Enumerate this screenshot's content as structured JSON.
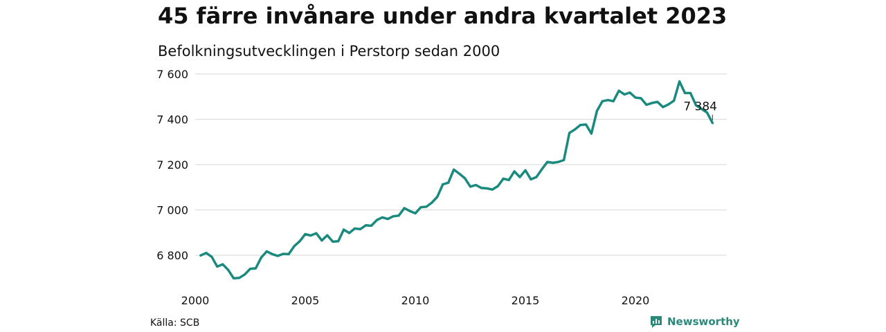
{
  "chart_data": {
    "type": "line",
    "title": "45 färre invånare under andra kvartalet 2023",
    "subtitle": "Befolkningsutvecklingen i Perstorp sedan 2000",
    "xlabel": "",
    "ylabel": "",
    "xlim": [
      2000,
      2023.4
    ],
    "ylim": [
      6690,
      7630
    ],
    "x_ticks": [
      2000,
      2005,
      2010,
      2015,
      2020
    ],
    "x_tick_labels": [
      "2000",
      "2005",
      "2010",
      "2015",
      "2020"
    ],
    "y_ticks": [
      6800,
      7000,
      7200,
      7400,
      7600
    ],
    "y_tick_labels": [
      "6 800",
      "7 000",
      "7 200",
      "7 400",
      "7 600"
    ],
    "grid": true,
    "legend": "none",
    "series": [
      {
        "color": "#1a8a7e",
        "x": [
          2000.25,
          2000.5,
          2000.75,
          2001.0,
          2001.25,
          2001.5,
          2001.75,
          2002.0,
          2002.25,
          2002.5,
          2002.75,
          2003.0,
          2003.25,
          2003.5,
          2003.75,
          2004.0,
          2004.25,
          2004.5,
          2004.75,
          2005.0,
          2005.25,
          2005.5,
          2005.75,
          2006.0,
          2006.25,
          2006.5,
          2006.75,
          2007.0,
          2007.25,
          2007.5,
          2007.75,
          2008.0,
          2008.25,
          2008.5,
          2008.75,
          2009.0,
          2009.25,
          2009.5,
          2009.75,
          2010.0,
          2010.25,
          2010.5,
          2010.75,
          2011.0,
          2011.25,
          2011.5,
          2011.75,
          2012.0,
          2012.25,
          2012.5,
          2012.75,
          2013.0,
          2013.25,
          2013.5,
          2013.75,
          2014.0,
          2014.25,
          2014.5,
          2014.75,
          2015.0,
          2015.25,
          2015.5,
          2015.75,
          2016.0,
          2016.25,
          2016.5,
          2016.75,
          2017.0,
          2017.25,
          2017.5,
          2017.75,
          2018.0,
          2018.25,
          2018.5,
          2018.75,
          2019.0,
          2019.25,
          2019.5,
          2019.75,
          2020.0,
          2020.25,
          2020.5,
          2020.75,
          2021.0,
          2021.25,
          2021.5,
          2021.75,
          2022.0,
          2022.25,
          2022.5,
          2022.75,
          2023.0,
          2023.25,
          2023.5
        ],
        "values": [
          6799,
          6810,
          6793,
          6750,
          6760,
          6735,
          6698,
          6700,
          6715,
          6740,
          6742,
          6790,
          6817,
          6805,
          6797,
          6806,
          6805,
          6840,
          6862,
          6893,
          6887,
          6897,
          6865,
          6888,
          6860,
          6862,
          6913,
          6898,
          6918,
          6915,
          6932,
          6930,
          6955,
          6967,
          6960,
          6972,
          6975,
          7008,
          6995,
          6985,
          7012,
          7014,
          7032,
          7058,
          7113,
          7120,
          7178,
          7160,
          7140,
          7103,
          7110,
          7097,
          7095,
          7090,
          7105,
          7138,
          7132,
          7170,
          7145,
          7175,
          7135,
          7145,
          7180,
          7212,
          7208,
          7212,
          7220,
          7340,
          7355,
          7375,
          7377,
          7337,
          7437,
          7480,
          7485,
          7480,
          7526,
          7510,
          7518,
          7496,
          7493,
          7464,
          7472,
          7477,
          7454,
          7466,
          7482,
          7567,
          7516,
          7516,
          7462,
          7446,
          7430,
          7384
        ]
      }
    ],
    "annotation": {
      "x": 2023.5,
      "y": 7384,
      "label": "7 384"
    }
  },
  "footer": {
    "source": "Källa: SCB",
    "brand": "Newsworthy"
  }
}
